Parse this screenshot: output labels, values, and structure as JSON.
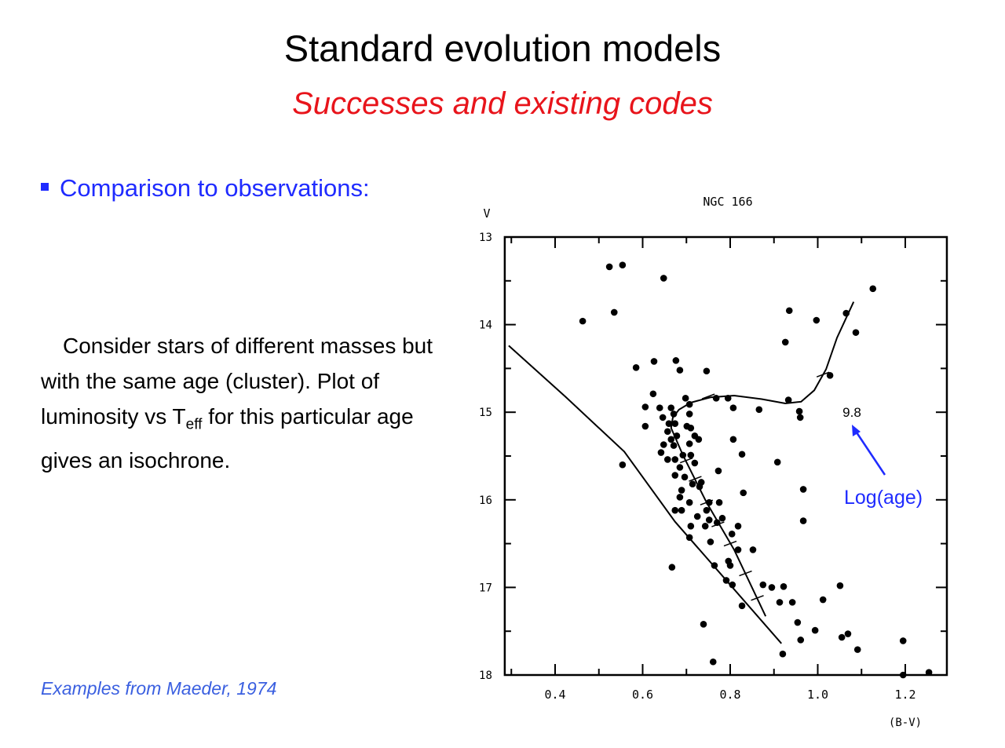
{
  "slide": {
    "title": "Standard evolution models",
    "subtitle": "Successes and existing codes",
    "bullet": "Comparison to observations:",
    "body_main": "Consider stars of different masses but with the same age (cluster). Plot of luminosity vs T",
    "body_sub": "eff",
    "body_end": " for this particular age gives an isochrone.",
    "footer": "Examples from Maeder, 1974",
    "annotation": "Log(age)",
    "colors": {
      "title": "#000000",
      "subtitle": "#e8141b",
      "accent": "#1f2bff",
      "footer": "#3a5fe0"
    }
  },
  "chart_data": {
    "type": "scatter",
    "title": "NGC 166",
    "xlabel": "(B-V)",
    "ylabel": "V",
    "xlim": [
      0.285,
      1.295
    ],
    "ylim": [
      18,
      13
    ],
    "y_inverted": true,
    "xticks": [
      0.4,
      0.6,
      0.8,
      1.0,
      1.2
    ],
    "xtick_labels": [
      "0.4",
      "0.6",
      "0.8",
      "1.0",
      "1.2"
    ],
    "yticks": [
      13,
      14,
      15,
      16,
      17,
      18
    ],
    "ytick_labels": [
      "13",
      "14",
      "15",
      "16",
      "17",
      "18"
    ],
    "grid": false,
    "label_annotation": {
      "text": "9.8",
      "x": 1.078,
      "y": 15.0
    },
    "stars": [
      [
        0.524,
        13.34
      ],
      [
        0.554,
        13.32
      ],
      [
        0.648,
        13.47
      ],
      [
        0.463,
        13.96
      ],
      [
        0.535,
        13.86
      ],
      [
        1.126,
        13.59
      ],
      [
        0.935,
        13.84
      ],
      [
        0.997,
        13.95
      ],
      [
        1.065,
        13.87
      ],
      [
        1.087,
        14.09
      ],
      [
        0.926,
        14.2
      ],
      [
        0.585,
        14.49
      ],
      [
        0.626,
        14.42
      ],
      [
        0.676,
        14.41
      ],
      [
        0.685,
        14.52
      ],
      [
        0.746,
        14.53
      ],
      [
        1.028,
        14.58
      ],
      [
        0.624,
        14.79
      ],
      [
        0.606,
        14.94
      ],
      [
        0.606,
        15.16
      ],
      [
        0.866,
        14.97
      ],
      [
        0.958,
        14.99
      ],
      [
        0.96,
        15.06
      ],
      [
        0.933,
        14.86
      ],
      [
        0.554,
        15.6
      ],
      [
        0.807,
        15.31
      ],
      [
        0.827,
        15.48
      ],
      [
        0.908,
        15.57
      ],
      [
        0.967,
        15.88
      ],
      [
        0.967,
        16.24
      ],
      [
        0.83,
        15.92
      ],
      [
        0.667,
        16.77
      ],
      [
        0.739,
        17.42
      ],
      [
        0.761,
        17.85
      ],
      [
        0.852,
        16.57
      ],
      [
        0.875,
        16.97
      ],
      [
        0.895,
        17.0
      ],
      [
        0.922,
        16.99
      ],
      [
        0.913,
        17.17
      ],
      [
        0.942,
        17.17
      ],
      [
        1.012,
        17.14
      ],
      [
        1.051,
        16.98
      ],
      [
        0.954,
        17.4
      ],
      [
        0.994,
        17.49
      ],
      [
        0.961,
        17.6
      ],
      [
        1.055,
        17.57
      ],
      [
        1.069,
        17.53
      ],
      [
        1.091,
        17.71
      ],
      [
        1.195,
        17.61
      ],
      [
        0.92,
        17.76
      ],
      [
        1.195,
        18.0
      ],
      [
        1.254,
        17.97
      ],
      [
        0.827,
        17.21
      ],
      [
        0.698,
        14.84
      ],
      [
        0.707,
        14.91
      ],
      [
        0.768,
        14.84
      ],
      [
        0.795,
        14.84
      ],
      [
        0.807,
        14.95
      ],
      [
        0.665,
        14.95
      ],
      [
        0.671,
        15.02
      ],
      [
        0.674,
        15.13
      ],
      [
        0.701,
        15.16
      ],
      [
        0.707,
        15.02
      ],
      [
        0.66,
        15.13
      ],
      [
        0.657,
        15.22
      ],
      [
        0.665,
        15.31
      ],
      [
        0.671,
        15.38
      ],
      [
        0.71,
        15.18
      ],
      [
        0.719,
        15.27
      ],
      [
        0.707,
        15.36
      ],
      [
        0.728,
        15.31
      ],
      [
        0.71,
        15.49
      ],
      [
        0.719,
        15.58
      ],
      [
        0.648,
        15.37
      ],
      [
        0.642,
        15.46
      ],
      [
        0.657,
        15.54
      ],
      [
        0.674,
        15.54
      ],
      [
        0.692,
        15.49
      ],
      [
        0.734,
        15.8
      ],
      [
        0.714,
        15.82
      ],
      [
        0.696,
        15.74
      ],
      [
        0.674,
        15.72
      ],
      [
        0.685,
        15.97
      ],
      [
        0.707,
        16.03
      ],
      [
        0.689,
        16.12
      ],
      [
        0.725,
        16.19
      ],
      [
        0.752,
        16.23
      ],
      [
        0.71,
        16.3
      ],
      [
        0.743,
        16.3
      ],
      [
        0.755,
        16.48
      ],
      [
        0.775,
        16.03
      ],
      [
        0.773,
        15.67
      ],
      [
        0.73,
        15.85
      ],
      [
        0.764,
        16.75
      ],
      [
        0.707,
        16.43
      ],
      [
        0.77,
        16.26
      ],
      [
        0.782,
        16.21
      ],
      [
        0.804,
        16.39
      ],
      [
        0.818,
        16.3
      ],
      [
        0.8,
        16.75
      ],
      [
        0.791,
        16.92
      ],
      [
        0.805,
        16.97
      ],
      [
        0.818,
        16.57
      ],
      [
        0.796,
        16.7
      ],
      [
        0.639,
        14.95
      ],
      [
        0.646,
        15.06
      ],
      [
        0.689,
        15.89
      ],
      [
        0.674,
        16.12
      ],
      [
        0.746,
        16.12
      ],
      [
        0.752,
        16.03
      ],
      [
        0.678,
        15.27
      ],
      [
        0.685,
        15.63
      ]
    ],
    "zams_line": [
      [
        0.294,
        14.24
      ],
      [
        0.423,
        14.82
      ],
      [
        0.558,
        15.45
      ],
      [
        0.674,
        16.25
      ],
      [
        0.8,
        16.97
      ],
      [
        0.917,
        17.64
      ]
    ],
    "isochrone": [
      [
        0.881,
        17.33
      ],
      [
        0.809,
        16.57
      ],
      [
        0.746,
        16.03
      ],
      [
        0.692,
        15.49
      ],
      [
        0.665,
        15.18
      ],
      [
        0.669,
        15.06
      ],
      [
        0.683,
        14.97
      ],
      [
        0.71,
        14.89
      ],
      [
        0.755,
        14.83
      ],
      [
        0.809,
        14.81
      ],
      [
        0.872,
        14.85
      ],
      [
        0.926,
        14.9
      ],
      [
        0.962,
        14.88
      ],
      [
        0.992,
        14.75
      ],
      [
        1.019,
        14.51
      ],
      [
        1.044,
        14.15
      ],
      [
        1.082,
        13.74
      ]
    ],
    "isochrone_ticks": [
      [
        0.862,
        17.12
      ],
      [
        0.835,
        16.84
      ],
      [
        0.8,
        16.5
      ],
      [
        0.772,
        16.28
      ],
      [
        0.746,
        16.03
      ],
      [
        0.72,
        15.76
      ],
      [
        0.7,
        15.55
      ],
      [
        0.75,
        14.82
      ],
      [
        1.012,
        14.57
      ]
    ]
  }
}
